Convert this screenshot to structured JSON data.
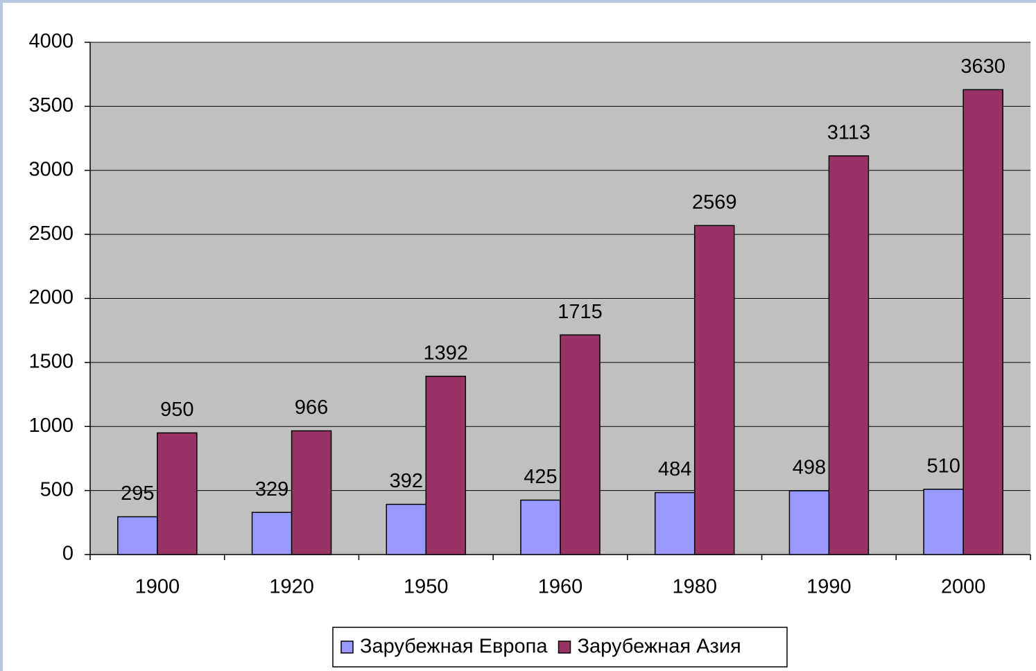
{
  "chart_data": {
    "type": "bar",
    "categories": [
      "1900",
      "1920",
      "1950",
      "1960",
      "1980",
      "1990",
      "2000"
    ],
    "series": [
      {
        "name": "Зарубежная Европа",
        "color": "#9999ff",
        "values": [
          295,
          329,
          392,
          425,
          484,
          498,
          510
        ]
      },
      {
        "name": "Зарубежная Азия",
        "color": "#993366",
        "values": [
          950,
          966,
          1392,
          1715,
          2569,
          3113,
          3630
        ]
      }
    ],
    "ylim": [
      0,
      4000
    ],
    "yticks": [
      0,
      500,
      1000,
      1500,
      2000,
      2500,
      3000,
      3500,
      4000
    ],
    "grid": true,
    "legend": "bottom"
  }
}
